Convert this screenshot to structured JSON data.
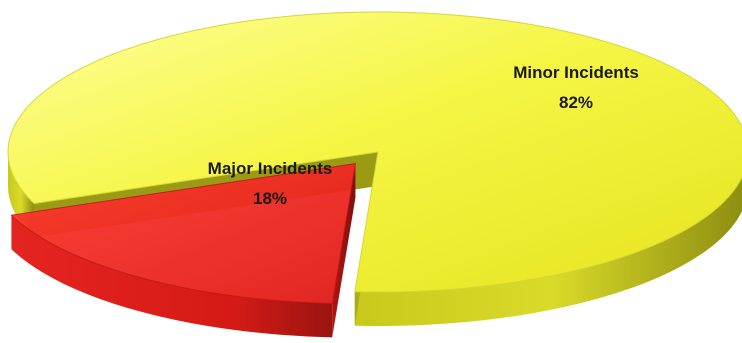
{
  "chart_data": {
    "type": "pie",
    "title": "",
    "slices": [
      {
        "label": "Minor Incidents",
        "value": 82,
        "value_label": "82%",
        "color": "#f0f02a"
      },
      {
        "label": "Major Incidents",
        "value": 18,
        "value_label": "18%",
        "color": "#e8221e"
      }
    ],
    "legend": "none",
    "style": "3d-exploded"
  }
}
